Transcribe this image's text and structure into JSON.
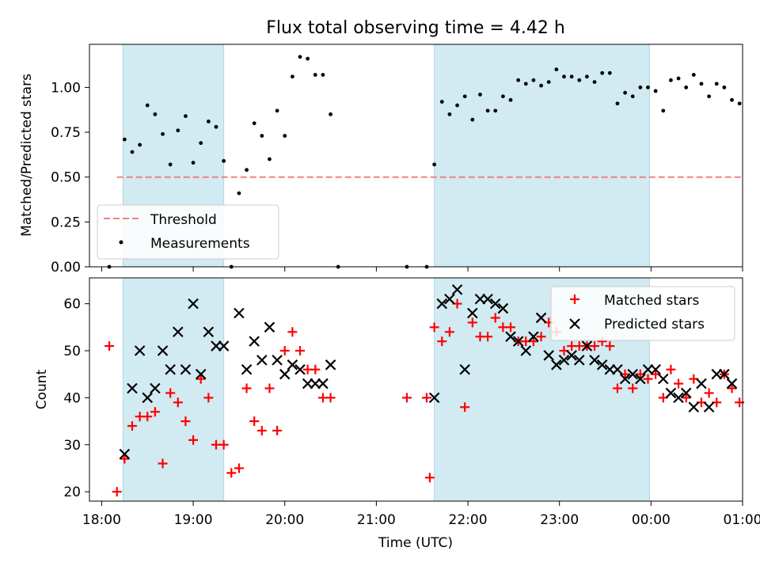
{
  "figure": {
    "title": "Flux total observing time = 4.42 h"
  },
  "chart_data": [
    {
      "type": "scatter",
      "panel": "top",
      "title": "Flux total observing time = 4.42 h",
      "xlabel": "",
      "ylabel": "Matched/Predicted stars",
      "xlim": [
        "18:10",
        "01:15"
      ],
      "ylim": [
        0,
        1.24
      ],
      "x_ticks": [
        "18:00",
        "19:00",
        "20:00",
        "21:00",
        "22:00",
        "23:00",
        "00:00",
        "01:00"
      ],
      "x_tick_labels_visible": false,
      "y_ticks": [
        0.0,
        0.25,
        0.5,
        0.75,
        1.0
      ],
      "y_tick_labels": [
        "0.00",
        "0.25",
        "0.50",
        "0.75",
        "1.00"
      ],
      "grid": false,
      "legend": {
        "placement": "lower-left",
        "entries": [
          {
            "label": "Threshold",
            "style": "dashed-line",
            "color": "#f08080"
          },
          {
            "label": "Measurements",
            "style": "dot",
            "color": "#000000"
          }
        ]
      },
      "shaded_spans": [
        {
          "start": "18:14",
          "end": "19:20",
          "color": "#add8e6"
        },
        {
          "start": "21:38",
          "end": "23:59",
          "color": "#add8e6"
        }
      ],
      "threshold": {
        "label": "Threshold",
        "value": 0.5,
        "start": "18:10",
        "end": "00:59",
        "color": "#f08080"
      },
      "series": [
        {
          "name": "Measurements",
          "color": "#000000",
          "marker": "dot",
          "points": [
            [
              "18:05",
              0.0
            ],
            [
              "18:15",
              0.71
            ],
            [
              "18:20",
              0.64
            ],
            [
              "18:25",
              0.68
            ],
            [
              "18:30",
              0.9
            ],
            [
              "18:35",
              0.85
            ],
            [
              "18:40",
              0.74
            ],
            [
              "18:45",
              0.57
            ],
            [
              "18:50",
              0.76
            ],
            [
              "18:55",
              0.84
            ],
            [
              "19:00",
              0.58
            ],
            [
              "19:05",
              0.69
            ],
            [
              "19:10",
              0.81
            ],
            [
              "19:15",
              0.78
            ],
            [
              "19:20",
              0.59
            ],
            [
              "19:25",
              0.0
            ],
            [
              "19:30",
              0.41
            ],
            [
              "19:35",
              0.54
            ],
            [
              "19:40",
              0.8
            ],
            [
              "19:45",
              0.73
            ],
            [
              "19:50",
              0.6
            ],
            [
              "19:55",
              0.87
            ],
            [
              "20:00",
              0.73
            ],
            [
              "20:05",
              1.06
            ],
            [
              "20:10",
              1.17
            ],
            [
              "20:15",
              1.16
            ],
            [
              "20:20",
              1.07
            ],
            [
              "20:25",
              1.07
            ],
            [
              "20:30",
              0.85
            ],
            [
              "20:35",
              0.0
            ],
            [
              "21:20",
              0.0
            ],
            [
              "21:33",
              0.0
            ],
            [
              "21:38",
              0.57
            ],
            [
              "21:43",
              0.92
            ],
            [
              "21:48",
              0.85
            ],
            [
              "21:53",
              0.9
            ],
            [
              "21:58",
              0.95
            ],
            [
              "22:03",
              0.82
            ],
            [
              "22:08",
              0.96
            ],
            [
              "22:13",
              0.87
            ],
            [
              "22:18",
              0.87
            ],
            [
              "22:23",
              0.95
            ],
            [
              "22:28",
              0.93
            ],
            [
              "22:33",
              1.04
            ],
            [
              "22:38",
              1.02
            ],
            [
              "22:43",
              1.04
            ],
            [
              "22:48",
              1.01
            ],
            [
              "22:53",
              1.03
            ],
            [
              "22:58",
              1.1
            ],
            [
              "23:03",
              1.06
            ],
            [
              "23:08",
              1.06
            ],
            [
              "23:13",
              1.04
            ],
            [
              "23:18",
              1.06
            ],
            [
              "23:23",
              1.03
            ],
            [
              "23:28",
              1.08
            ],
            [
              "23:33",
              1.08
            ],
            [
              "23:38",
              0.91
            ],
            [
              "23:43",
              0.97
            ],
            [
              "23:48",
              0.95
            ],
            [
              "23:53",
              1.0
            ],
            [
              "23:58",
              1.0
            ],
            [
              "00:03",
              0.98
            ],
            [
              "00:08",
              0.87
            ],
            [
              "00:13",
              1.04
            ],
            [
              "00:18",
              1.05
            ],
            [
              "00:23",
              1.0
            ],
            [
              "00:28",
              1.07
            ],
            [
              "00:33",
              1.02
            ],
            [
              "00:38",
              0.95
            ],
            [
              "00:43",
              1.02
            ],
            [
              "00:48",
              1.0
            ],
            [
              "00:53",
              0.93
            ],
            [
              "00:58",
              0.91
            ]
          ]
        }
      ]
    },
    {
      "type": "scatter",
      "panel": "bottom",
      "title": "",
      "xlabel": "Time (UTC)",
      "ylabel": "Count",
      "xlim": [
        "18:10",
        "01:15"
      ],
      "ylim": [
        18,
        65.5
      ],
      "x_ticks": [
        "18:00",
        "19:00",
        "20:00",
        "21:00",
        "22:00",
        "23:00",
        "00:00",
        "01:00"
      ],
      "x_tick_labels": [
        "18:00",
        "19:00",
        "20:00",
        "21:00",
        "22:00",
        "23:00",
        "00:00",
        "01:00"
      ],
      "y_ticks": [
        20,
        30,
        40,
        50,
        60
      ],
      "y_tick_labels": [
        "20",
        "30",
        "40",
        "50",
        "60"
      ],
      "grid": false,
      "legend": {
        "placement": "upper-right",
        "entries": [
          {
            "label": "Matched stars",
            "marker": "plus",
            "color": "#ff0000"
          },
          {
            "label": "Predicted stars",
            "marker": "x",
            "color": "#000000"
          }
        ]
      },
      "shaded_spans": [
        {
          "start": "18:14",
          "end": "19:20",
          "color": "#add8e6"
        },
        {
          "start": "21:38",
          "end": "23:59",
          "color": "#add8e6"
        }
      ],
      "series": [
        {
          "name": "Matched stars",
          "color": "#ff0000",
          "marker": "plus",
          "points": [
            [
              "18:05",
              51
            ],
            [
              "18:10",
              20
            ],
            [
              "18:15",
              27
            ],
            [
              "18:20",
              34
            ],
            [
              "18:25",
              36
            ],
            [
              "18:30",
              36
            ],
            [
              "18:35",
              37
            ],
            [
              "18:40",
              26
            ],
            [
              "18:45",
              41
            ],
            [
              "18:50",
              39
            ],
            [
              "18:55",
              35
            ],
            [
              "19:00",
              31
            ],
            [
              "19:05",
              44
            ],
            [
              "19:10",
              40
            ],
            [
              "19:15",
              30
            ],
            [
              "19:20",
              30
            ],
            [
              "19:25",
              24
            ],
            [
              "19:30",
              25
            ],
            [
              "19:35",
              42
            ],
            [
              "19:40",
              35
            ],
            [
              "19:45",
              33
            ],
            [
              "19:50",
              42
            ],
            [
              "19:55",
              33
            ],
            [
              "20:00",
              50
            ],
            [
              "20:05",
              54
            ],
            [
              "20:10",
              50
            ],
            [
              "20:15",
              46
            ],
            [
              "20:20",
              46
            ],
            [
              "20:25",
              40
            ],
            [
              "20:30",
              40
            ],
            [
              "21:20",
              40
            ],
            [
              "21:33",
              40
            ],
            [
              "21:35",
              23
            ],
            [
              "21:38",
              55
            ],
            [
              "21:43",
              52
            ],
            [
              "21:48",
              54
            ],
            [
              "21:53",
              60
            ],
            [
              "21:58",
              38
            ],
            [
              "22:03",
              56
            ],
            [
              "22:08",
              53
            ],
            [
              "22:13",
              53
            ],
            [
              "22:18",
              57
            ],
            [
              "22:23",
              55
            ],
            [
              "22:28",
              55
            ],
            [
              "22:33",
              52
            ],
            [
              "22:38",
              52
            ],
            [
              "22:43",
              52
            ],
            [
              "22:48",
              53
            ],
            [
              "22:53",
              56
            ],
            [
              "22:58",
              54
            ],
            [
              "23:03",
              50
            ],
            [
              "23:08",
              51
            ],
            [
              "23:13",
              51
            ],
            [
              "23:18",
              51
            ],
            [
              "23:23",
              51
            ],
            [
              "23:28",
              52
            ],
            [
              "23:33",
              51
            ],
            [
              "23:38",
              42
            ],
            [
              "23:43",
              45
            ],
            [
              "23:48",
              42
            ],
            [
              "23:53",
              45
            ],
            [
              "23:58",
              44
            ],
            [
              "00:03",
              45
            ],
            [
              "00:08",
              40
            ],
            [
              "00:13",
              46
            ],
            [
              "00:18",
              43
            ],
            [
              "00:23",
              40
            ],
            [
              "00:28",
              44
            ],
            [
              "00:33",
              39
            ],
            [
              "00:38",
              41
            ],
            [
              "00:43",
              39
            ],
            [
              "00:48",
              45
            ],
            [
              "00:53",
              42
            ],
            [
              "00:58",
              39
            ]
          ]
        },
        {
          "name": "Predicted stars",
          "color": "#000000",
          "marker": "x",
          "points": [
            [
              "18:15",
              28
            ],
            [
              "18:20",
              42
            ],
            [
              "18:25",
              50
            ],
            [
              "18:30",
              40
            ],
            [
              "18:35",
              42
            ],
            [
              "18:40",
              50
            ],
            [
              "18:45",
              46
            ],
            [
              "18:50",
              54
            ],
            [
              "18:55",
              46
            ],
            [
              "19:00",
              60
            ],
            [
              "19:05",
              45
            ],
            [
              "19:10",
              54
            ],
            [
              "19:15",
              51
            ],
            [
              "19:20",
              51
            ],
            [
              "19:30",
              58
            ],
            [
              "19:35",
              46
            ],
            [
              "19:40",
              52
            ],
            [
              "19:45",
              48
            ],
            [
              "19:50",
              55
            ],
            [
              "19:55",
              48
            ],
            [
              "20:00",
              45
            ],
            [
              "20:05",
              47
            ],
            [
              "20:10",
              46
            ],
            [
              "20:15",
              43
            ],
            [
              "20:20",
              43
            ],
            [
              "20:25",
              43
            ],
            [
              "20:30",
              47
            ],
            [
              "21:38",
              40
            ],
            [
              "21:43",
              60
            ],
            [
              "21:48",
              61
            ],
            [
              "21:53",
              63
            ],
            [
              "21:58",
              46
            ],
            [
              "22:03",
              58
            ],
            [
              "22:08",
              61
            ],
            [
              "22:13",
              61
            ],
            [
              "22:18",
              60
            ],
            [
              "22:23",
              59
            ],
            [
              "22:28",
              53
            ],
            [
              "22:33",
              52
            ],
            [
              "22:38",
              50
            ],
            [
              "22:43",
              53
            ],
            [
              "22:48",
              57
            ],
            [
              "22:53",
              49
            ],
            [
              "22:58",
              47
            ],
            [
              "23:03",
              48
            ],
            [
              "23:08",
              49
            ],
            [
              "23:13",
              48
            ],
            [
              "23:18",
              51
            ],
            [
              "23:23",
              48
            ],
            [
              "23:28",
              47
            ],
            [
              "23:33",
              46
            ],
            [
              "23:38",
              46
            ],
            [
              "23:43",
              44
            ],
            [
              "23:48",
              45
            ],
            [
              "23:53",
              44
            ],
            [
              "23:58",
              46
            ],
            [
              "00:03",
              46
            ],
            [
              "00:08",
              44
            ],
            [
              "00:13",
              41
            ],
            [
              "00:18",
              40
            ],
            [
              "00:23",
              41
            ],
            [
              "00:28",
              38
            ],
            [
              "00:33",
              43
            ],
            [
              "00:38",
              38
            ],
            [
              "00:43",
              45
            ],
            [
              "00:48",
              45
            ],
            [
              "00:53",
              43
            ]
          ]
        }
      ]
    }
  ]
}
